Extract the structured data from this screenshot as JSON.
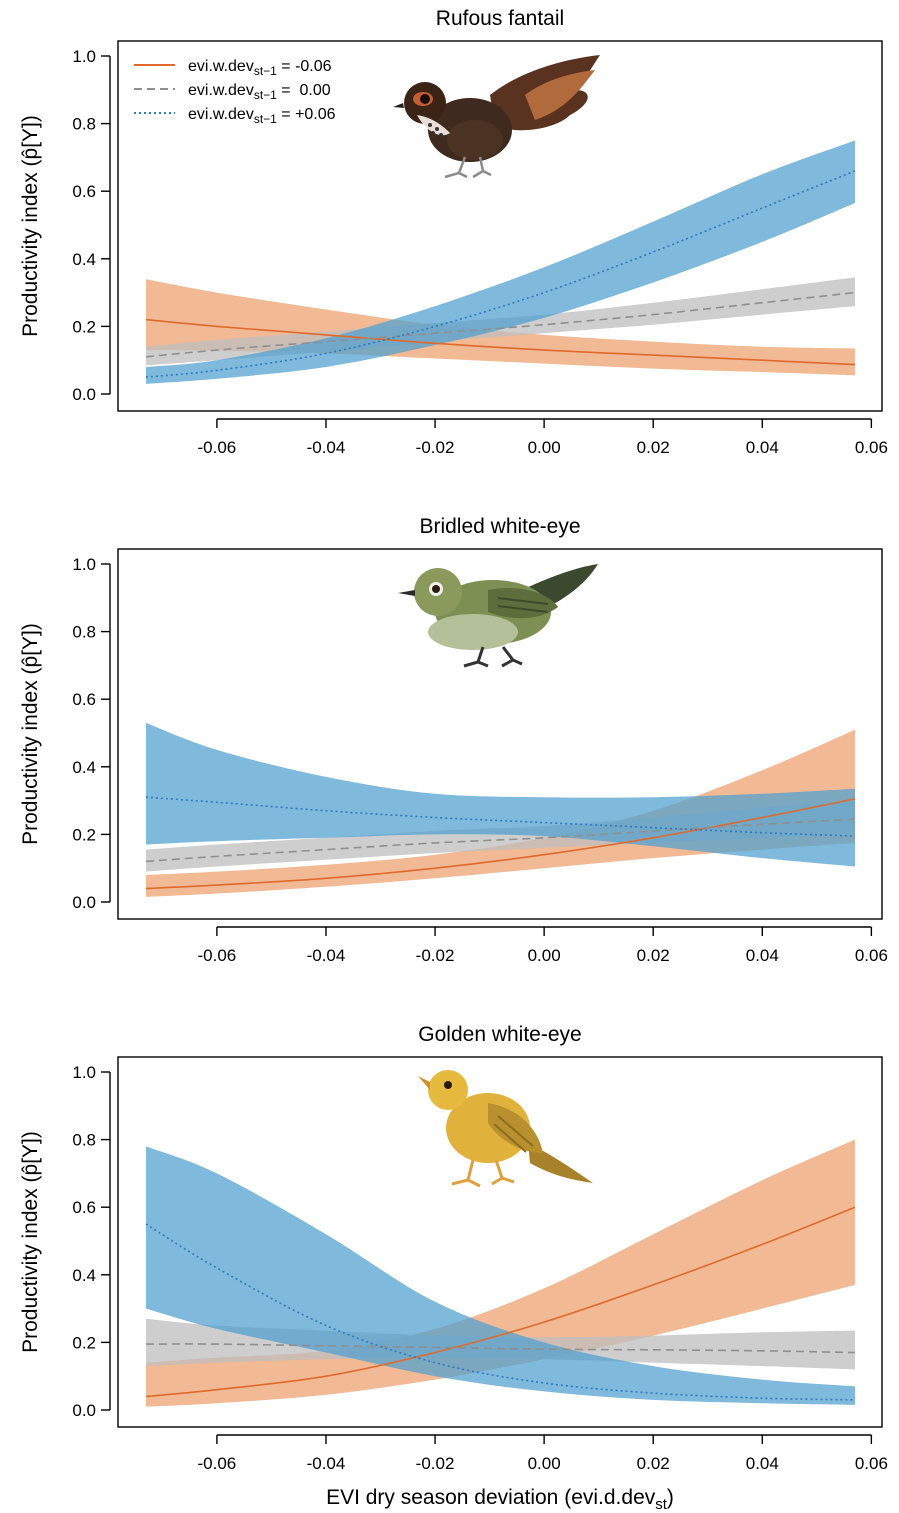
{
  "figure": {
    "xlabel": "EVI dry season deviation (evi.d.dev",
    "xlabel_sub": "st",
    "xlabel_close": ")",
    "ylabel": "Productivity index (p̂[Y])"
  },
  "legend": {
    "entries": [
      {
        "prefix": "evi.w.dev",
        "sub": "st−1",
        "value": " = -0.06",
        "color": "#E06A2B",
        "dash": "solid"
      },
      {
        "prefix": "evi.w.dev",
        "sub": "st−1",
        "value": " =  0.00",
        "color": "#8F8F8F",
        "dash": "dashed"
      },
      {
        "prefix": "evi.w.dev",
        "sub": "st−1",
        "value": " = +0.06",
        "color": "#2A7BC0",
        "dash": "dotted"
      }
    ],
    "position": "top-left"
  },
  "colors": {
    "orange_line": "#E06A2B",
    "orange_band": "#EC9F6C",
    "grey_line": "#8F8F8F",
    "grey_band": "#BDBDBD",
    "blue_line": "#2A7BC0",
    "blue_band": "#4E9FD0"
  },
  "chart_data": [
    {
      "type": "line",
      "title": "Rufous fantail",
      "bird_icon": "rufous-fantail-illustration",
      "xlim": [
        -0.073,
        0.057
      ],
      "ylim": [
        0,
        1.0
      ],
      "x_ticks": [
        "-0.06",
        "-0.04",
        "-0.02",
        "0.00",
        "0.02",
        "0.04",
        "0.06"
      ],
      "y_ticks": [
        "0.0",
        "0.2",
        "0.4",
        "0.6",
        "0.8",
        "1.0"
      ],
      "x": [
        -0.073,
        -0.06,
        -0.04,
        -0.02,
        0.0,
        0.02,
        0.04,
        0.057
      ],
      "series": [
        {
          "name": "evi.w.dev = -0.06",
          "color_key": "orange",
          "dash": "solid",
          "values": [
            0.22,
            0.2,
            0.175,
            0.15,
            0.13,
            0.115,
            0.1,
            0.087
          ],
          "lower": [
            0.13,
            0.128,
            0.12,
            0.105,
            0.09,
            0.075,
            0.065,
            0.055
          ],
          "upper": [
            0.34,
            0.3,
            0.25,
            0.205,
            0.175,
            0.155,
            0.14,
            0.135
          ]
        },
        {
          "name": "evi.w.dev = 0.00",
          "color_key": "grey",
          "dash": "dashed",
          "values": [
            0.11,
            0.13,
            0.155,
            0.18,
            0.205,
            0.235,
            0.27,
            0.3
          ],
          "lower": [
            0.085,
            0.1,
            0.125,
            0.155,
            0.18,
            0.205,
            0.235,
            0.26
          ],
          "upper": [
            0.14,
            0.16,
            0.185,
            0.21,
            0.235,
            0.27,
            0.31,
            0.345
          ]
        },
        {
          "name": "evi.w.dev = +0.06",
          "color_key": "blue",
          "dash": "dotted",
          "values": [
            0.05,
            0.07,
            0.12,
            0.2,
            0.3,
            0.42,
            0.55,
            0.66
          ],
          "lower": [
            0.03,
            0.045,
            0.08,
            0.145,
            0.225,
            0.33,
            0.45,
            0.565
          ],
          "upper": [
            0.08,
            0.1,
            0.165,
            0.26,
            0.375,
            0.51,
            0.65,
            0.75
          ]
        }
      ]
    },
    {
      "type": "line",
      "title": "Bridled white-eye",
      "bird_icon": "bridled-white-eye-illustration",
      "xlim": [
        -0.073,
        0.057
      ],
      "ylim": [
        0,
        1.0
      ],
      "x_ticks": [
        "-0.06",
        "-0.04",
        "-0.02",
        "0.00",
        "0.02",
        "0.04",
        "0.06"
      ],
      "y_ticks": [
        "0.0",
        "0.2",
        "0.4",
        "0.6",
        "0.8",
        "1.0"
      ],
      "x": [
        -0.073,
        -0.06,
        -0.04,
        -0.02,
        0.0,
        0.02,
        0.04,
        0.057
      ],
      "series": [
        {
          "name": "evi.w.dev = -0.06",
          "color_key": "orange",
          "dash": "solid",
          "values": [
            0.04,
            0.05,
            0.07,
            0.1,
            0.14,
            0.19,
            0.25,
            0.305
          ],
          "lower": [
            0.015,
            0.025,
            0.045,
            0.07,
            0.1,
            0.13,
            0.155,
            0.175
          ],
          "upper": [
            0.08,
            0.09,
            0.11,
            0.14,
            0.19,
            0.27,
            0.39,
            0.51
          ]
        },
        {
          "name": "evi.w.dev = 0.00",
          "color_key": "grey",
          "dash": "dashed",
          "values": [
            0.12,
            0.135,
            0.155,
            0.175,
            0.19,
            0.21,
            0.23,
            0.245
          ],
          "lower": [
            0.09,
            0.105,
            0.125,
            0.145,
            0.16,
            0.175,
            0.19,
            0.2
          ],
          "upper": [
            0.155,
            0.17,
            0.19,
            0.21,
            0.225,
            0.25,
            0.28,
            0.3
          ]
        },
        {
          "name": "evi.w.dev = +0.06",
          "color_key": "blue",
          "dash": "dotted",
          "values": [
            0.31,
            0.295,
            0.27,
            0.25,
            0.235,
            0.22,
            0.205,
            0.195
          ],
          "lower": [
            0.17,
            0.18,
            0.19,
            0.2,
            0.195,
            0.165,
            0.13,
            0.105
          ],
          "upper": [
            0.53,
            0.45,
            0.37,
            0.32,
            0.31,
            0.31,
            0.32,
            0.335
          ]
        }
      ]
    },
    {
      "type": "line",
      "title": "Golden white-eye",
      "bird_icon": "golden-white-eye-illustration",
      "xlim": [
        -0.073,
        0.057
      ],
      "ylim": [
        0,
        1.0
      ],
      "x_ticks": [
        "-0.06",
        "-0.04",
        "-0.02",
        "0.00",
        "0.02",
        "0.04",
        "0.06"
      ],
      "y_ticks": [
        "0.0",
        "0.2",
        "0.4",
        "0.6",
        "0.8",
        "1.0"
      ],
      "x": [
        -0.073,
        -0.06,
        -0.04,
        -0.02,
        0.0,
        0.02,
        0.04,
        0.057
      ],
      "series": [
        {
          "name": "evi.w.dev = -0.06",
          "color_key": "orange",
          "dash": "solid",
          "values": [
            0.04,
            0.06,
            0.1,
            0.17,
            0.26,
            0.37,
            0.49,
            0.6
          ],
          "lower": [
            0.01,
            0.02,
            0.045,
            0.09,
            0.15,
            0.22,
            0.3,
            0.37
          ],
          "upper": [
            0.14,
            0.155,
            0.175,
            0.24,
            0.36,
            0.52,
            0.68,
            0.8
          ]
        },
        {
          "name": "evi.w.dev = 0.00",
          "color_key": "grey",
          "dash": "dashed",
          "values": [
            0.195,
            0.195,
            0.19,
            0.185,
            0.18,
            0.178,
            0.175,
            0.17
          ],
          "lower": [
            0.13,
            0.14,
            0.15,
            0.155,
            0.15,
            0.14,
            0.13,
            0.12
          ],
          "upper": [
            0.27,
            0.25,
            0.235,
            0.22,
            0.215,
            0.22,
            0.23,
            0.235
          ]
        },
        {
          "name": "evi.w.dev = +0.06",
          "color_key": "blue",
          "dash": "dotted",
          "values": [
            0.55,
            0.42,
            0.25,
            0.14,
            0.08,
            0.05,
            0.035,
            0.03
          ],
          "lower": [
            0.3,
            0.24,
            0.17,
            0.1,
            0.055,
            0.03,
            0.02,
            0.015
          ],
          "upper": [
            0.78,
            0.7,
            0.52,
            0.32,
            0.2,
            0.13,
            0.09,
            0.07
          ]
        }
      ]
    }
  ]
}
